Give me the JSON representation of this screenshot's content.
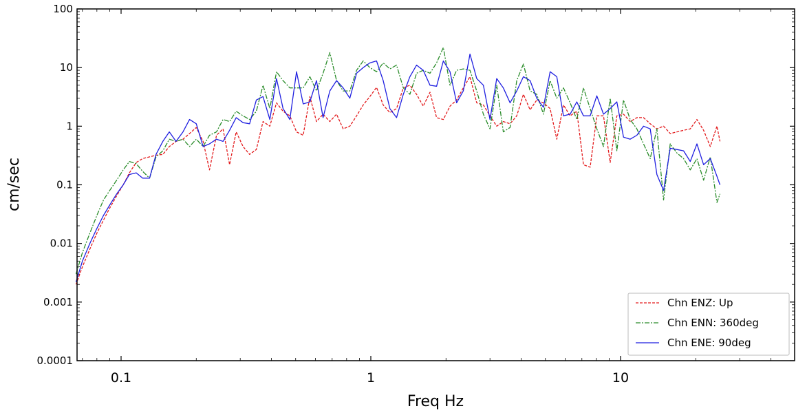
{
  "chart_data": {
    "type": "line",
    "title": "",
    "xlabel": "Freq Hz",
    "ylabel": "cm/sec",
    "x_scale": "log",
    "y_scale": "log",
    "xlim": [
      0.065,
      50
    ],
    "ylim": [
      0.0001,
      100
    ],
    "x_tick_labels": [
      {
        "value": 0.1,
        "label": "0.1"
      },
      {
        "value": 1,
        "label": "1"
      },
      {
        "value": 10,
        "label": "10"
      }
    ],
    "y_tick_labels": [
      {
        "value": 0.0001,
        "label": "0.0001"
      },
      {
        "value": 0.001,
        "label": "0.001"
      },
      {
        "value": 0.01,
        "label": "0.01"
      },
      {
        "value": 0.1,
        "label": "0.1"
      },
      {
        "value": 1,
        "label": "1"
      },
      {
        "value": 10,
        "label": "10"
      },
      {
        "value": 100,
        "label": "100"
      }
    ],
    "grid": false,
    "legend_position": "lower-right",
    "series": [
      {
        "name": "Chn ENZ: Up",
        "color": "#e31a1c",
        "dash": "dashed",
        "x": [
          0.066,
          0.07,
          0.075,
          0.08,
          0.085,
          0.09,
          0.096,
          0.102,
          0.108,
          0.115,
          0.122,
          0.13,
          0.138,
          0.147,
          0.156,
          0.166,
          0.177,
          0.188,
          0.2,
          0.213,
          0.226,
          0.241,
          0.256,
          0.272,
          0.289,
          0.308,
          0.327,
          0.348,
          0.37,
          0.394,
          0.419,
          0.445,
          0.474,
          0.504,
          0.536,
          0.57,
          0.606,
          0.644,
          0.685,
          0.729,
          0.775,
          0.824,
          0.877,
          0.932,
          0.991,
          1.054,
          1.121,
          1.192,
          1.268,
          1.349,
          1.434,
          1.525,
          1.622,
          1.725,
          1.834,
          1.951,
          2.075,
          2.206,
          2.346,
          2.495,
          2.654,
          2.822,
          3.001,
          3.192,
          3.394,
          3.61,
          3.839,
          4.083,
          4.342,
          4.617,
          4.91,
          5.222,
          5.553,
          5.906,
          6.281,
          6.679,
          7.103,
          7.554,
          8.034,
          8.543,
          9.086,
          9.662,
          10.275,
          10.928,
          11.621,
          12.359,
          13.143,
          13.977,
          14.864,
          15.807,
          16.81,
          17.877,
          19.012,
          20.218,
          21.502,
          22.866,
          24.317,
          25.0
        ],
        "y": [
          0.002,
          0.004,
          0.008,
          0.015,
          0.025,
          0.04,
          0.065,
          0.1,
          0.16,
          0.24,
          0.28,
          0.3,
          0.32,
          0.33,
          0.45,
          0.55,
          0.6,
          0.75,
          0.95,
          0.55,
          0.18,
          0.7,
          0.9,
          0.22,
          0.8,
          0.45,
          0.33,
          0.4,
          1.2,
          1.0,
          2.5,
          1.8,
          1.5,
          0.8,
          0.7,
          3.2,
          1.2,
          1.6,
          1.2,
          1.6,
          0.9,
          1.0,
          1.5,
          2.3,
          3.2,
          4.6,
          2.3,
          1.7,
          2.0,
          4.5,
          5.0,
          3.5,
          2.2,
          3.8,
          1.4,
          1.3,
          2.2,
          2.8,
          4.5,
          7.0,
          2.5,
          2.3,
          1.5,
          1.0,
          1.2,
          1.1,
          1.5,
          3.5,
          1.9,
          2.8,
          2.5,
          2.0,
          0.6,
          2.3,
          1.5,
          1.8,
          0.22,
          0.2,
          1.5,
          1.5,
          0.24,
          1.5,
          1.6,
          1.2,
          1.4,
          1.4,
          1.1,
          0.9,
          1.0,
          0.75,
          0.8,
          0.85,
          0.9,
          1.3,
          0.85,
          0.45,
          1.0,
          0.55
        ]
      },
      {
        "name": "Chn ENN: 360deg",
        "color": "#2a8c2a",
        "dash": "dashdot",
        "x": [
          0.066,
          0.07,
          0.075,
          0.08,
          0.085,
          0.09,
          0.096,
          0.102,
          0.108,
          0.115,
          0.122,
          0.13,
          0.138,
          0.147,
          0.156,
          0.166,
          0.177,
          0.188,
          0.2,
          0.213,
          0.226,
          0.241,
          0.256,
          0.272,
          0.289,
          0.308,
          0.327,
          0.348,
          0.37,
          0.394,
          0.419,
          0.445,
          0.474,
          0.504,
          0.536,
          0.57,
          0.606,
          0.644,
          0.685,
          0.729,
          0.775,
          0.824,
          0.877,
          0.932,
          0.991,
          1.054,
          1.121,
          1.192,
          1.268,
          1.349,
          1.434,
          1.525,
          1.622,
          1.725,
          1.834,
          1.951,
          2.075,
          2.206,
          2.346,
          2.495,
          2.654,
          2.822,
          3.001,
          3.192,
          3.394,
          3.61,
          3.839,
          4.083,
          4.342,
          4.617,
          4.91,
          5.222,
          5.553,
          5.906,
          6.281,
          6.679,
          7.103,
          7.554,
          8.034,
          8.543,
          9.086,
          9.662,
          10.275,
          10.928,
          11.621,
          12.359,
          13.143,
          13.977,
          14.864,
          15.807,
          16.81,
          17.877,
          19.012,
          20.218,
          21.502,
          22.866,
          24.317,
          25.0
        ],
        "y": [
          0.003,
          0.007,
          0.015,
          0.03,
          0.055,
          0.08,
          0.12,
          0.18,
          0.25,
          0.23,
          0.17,
          0.13,
          0.3,
          0.38,
          0.6,
          0.55,
          0.6,
          0.45,
          0.6,
          0.45,
          0.7,
          0.8,
          1.3,
          1.2,
          1.8,
          1.5,
          1.3,
          1.8,
          5.0,
          2.0,
          8.5,
          6.0,
          4.5,
          4.5,
          4.5,
          7.0,
          4.0,
          8.0,
          18.0,
          6.0,
          4.0,
          4.0,
          9.0,
          13.0,
          10.0,
          8.5,
          12.0,
          9.5,
          11.0,
          4.5,
          3.5,
          8.0,
          9.0,
          8.0,
          12.0,
          22.0,
          5.0,
          9.0,
          9.5,
          9.0,
          4.0,
          1.6,
          0.9,
          5.0,
          0.8,
          0.95,
          6.0,
          11.5,
          4.0,
          3.5,
          1.6,
          6.0,
          3.0,
          4.5,
          2.5,
          1.3,
          4.5,
          2.0,
          0.9,
          0.45,
          3.0,
          0.38,
          2.8,
          1.3,
          0.9,
          0.5,
          0.28,
          0.9,
          0.055,
          0.5,
          0.35,
          0.28,
          0.18,
          0.28,
          0.12,
          0.3,
          0.05,
          0.07
        ]
      },
      {
        "name": "Chn ENE: 90deg",
        "color": "#1f1fe0",
        "dash": "solid",
        "x": [
          0.066,
          0.07,
          0.075,
          0.08,
          0.085,
          0.09,
          0.096,
          0.102,
          0.108,
          0.115,
          0.122,
          0.13,
          0.138,
          0.147,
          0.156,
          0.166,
          0.177,
          0.188,
          0.2,
          0.213,
          0.226,
          0.241,
          0.256,
          0.272,
          0.289,
          0.308,
          0.327,
          0.348,
          0.37,
          0.394,
          0.419,
          0.445,
          0.474,
          0.504,
          0.536,
          0.57,
          0.606,
          0.644,
          0.685,
          0.729,
          0.775,
          0.824,
          0.877,
          0.932,
          0.991,
          1.054,
          1.121,
          1.192,
          1.268,
          1.349,
          1.434,
          1.525,
          1.622,
          1.725,
          1.834,
          1.951,
          2.075,
          2.206,
          2.346,
          2.495,
          2.654,
          2.822,
          3.001,
          3.192,
          3.394,
          3.61,
          3.839,
          4.083,
          4.342,
          4.617,
          4.91,
          5.222,
          5.553,
          5.906,
          6.281,
          6.679,
          7.103,
          7.554,
          8.034,
          8.543,
          9.086,
          9.662,
          10.275,
          10.928,
          11.621,
          12.359,
          13.143,
          13.977,
          14.864,
          15.807,
          16.81,
          17.877,
          19.012,
          20.218,
          21.502,
          22.866,
          24.317,
          25.0
        ],
        "y": [
          0.0022,
          0.005,
          0.01,
          0.018,
          0.03,
          0.045,
          0.07,
          0.1,
          0.15,
          0.16,
          0.13,
          0.13,
          0.33,
          0.55,
          0.8,
          0.55,
          0.8,
          1.3,
          1.1,
          0.45,
          0.5,
          0.6,
          0.55,
          0.85,
          1.4,
          1.15,
          1.1,
          2.8,
          3.2,
          1.3,
          6.5,
          2.0,
          1.3,
          8.5,
          2.4,
          2.6,
          6.0,
          1.4,
          4.0,
          6.0,
          4.5,
          3.0,
          8.0,
          10.0,
          12.0,
          13.0,
          6.0,
          2.0,
          1.4,
          3.5,
          7.0,
          11.0,
          9.0,
          5.0,
          4.8,
          13.0,
          8.5,
          2.5,
          4.0,
          17.0,
          6.5,
          5.0,
          1.3,
          6.5,
          4.5,
          2.5,
          4.0,
          7.0,
          6.0,
          3.0,
          2.1,
          8.5,
          7.0,
          1.5,
          1.6,
          2.6,
          1.5,
          1.5,
          3.3,
          1.6,
          2.0,
          2.6,
          0.65,
          0.6,
          0.7,
          1.0,
          0.9,
          0.15,
          0.08,
          0.42,
          0.4,
          0.38,
          0.25,
          0.5,
          0.22,
          0.28,
          0.14,
          0.1
        ]
      }
    ]
  }
}
